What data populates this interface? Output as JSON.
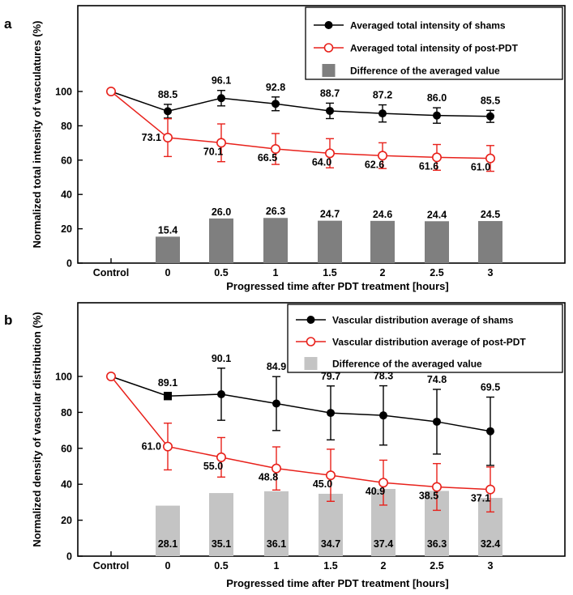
{
  "chart_data": [
    {
      "panel_label": "a",
      "type": "line",
      "xlabel": "Progressed time after PDT treatment [hours]",
      "ylabel": "Normalized total intensity of vasculatures (%)",
      "categories": [
        "Control",
        "0",
        "0.5",
        "1",
        "1.5",
        "2",
        "2.5",
        "3"
      ],
      "ylim": [
        0,
        140
      ],
      "yticks": [
        0,
        20,
        40,
        60,
        80,
        100
      ],
      "grid": false,
      "legend_position": "top-right",
      "bar_color": "#7f7f7f",
      "series": [
        {
          "name": "Averaged total intensity of shams",
          "kind": "line",
          "color": "#000000",
          "marker": "filled-circle",
          "values": [
            100,
            88.5,
            96.1,
            92.8,
            88.7,
            87.2,
            86.0,
            85.5
          ],
          "errors": [
            0,
            4,
            4.5,
            4,
            4.5,
            5,
            4.5,
            3.5
          ],
          "labels": [
            "",
            "88.5",
            "96.1",
            "92.8",
            "88.7",
            "87.2",
            "86.0",
            "85.5"
          ]
        },
        {
          "name": "Averaged total intensity of post-PDT",
          "kind": "line",
          "color": "#e8211b",
          "marker": "open-circle",
          "values": [
            100,
            73.1,
            70.1,
            66.5,
            64.0,
            62.6,
            61.6,
            61.0
          ],
          "errors": [
            0,
            11,
            11,
            9,
            8.5,
            7.5,
            7.5,
            7.5
          ],
          "labels": [
            "",
            "73.1",
            "70.1",
            "66.5",
            "64.0",
            "62.6",
            "61.6",
            "61.0"
          ]
        },
        {
          "name": "Difference of the averaged value",
          "kind": "bar",
          "values": [
            null,
            15.4,
            26.0,
            26.3,
            24.7,
            24.6,
            24.4,
            24.5
          ],
          "labels": [
            "",
            "15.4",
            "26.0",
            "26.3",
            "24.7",
            "24.6",
            "24.4",
            "24.5"
          ]
        }
      ]
    },
    {
      "panel_label": "b",
      "type": "line",
      "xlabel": "Progressed time after PDT treatment [hours]",
      "ylabel": "Normalized density of vascular distribution (%)",
      "categories": [
        "Control",
        "0",
        "0.5",
        "1",
        "1.5",
        "2",
        "2.5",
        "3"
      ],
      "ylim": [
        0,
        140
      ],
      "yticks": [
        0,
        20,
        40,
        60,
        80,
        100
      ],
      "grid": false,
      "legend_position": "top-right",
      "bar_color": "#c4c4c4",
      "series": [
        {
          "name": "Vascular distribution average of shams",
          "kind": "line",
          "color": "#000000",
          "marker": "filled-circle",
          "values": [
            100,
            89.1,
            90.1,
            84.9,
            79.7,
            78.3,
            74.8,
            69.5
          ],
          "errors": [
            0,
            2,
            14.5,
            15,
            15,
            16.5,
            18,
            19
          ],
          "labels": [
            "",
            "89.1",
            "90.1",
            "84.9",
            "79.7",
            "78.3",
            "74.8",
            "69.5"
          ]
        },
        {
          "name": "Vascular distribution average of post-PDT",
          "kind": "line",
          "color": "#e8211b",
          "marker": "open-circle",
          "values": [
            100,
            61.0,
            55.0,
            48.8,
            45.0,
            40.9,
            38.5,
            37.1
          ],
          "errors": [
            0,
            13,
            11,
            12,
            14.5,
            12.5,
            13,
            12.5
          ],
          "labels": [
            "",
            "61.0",
            "55.0",
            "48.8",
            "45.0",
            "40.9",
            "38.5",
            "37.1"
          ]
        },
        {
          "name": "Difference of the averaged value",
          "kind": "bar",
          "values": [
            null,
            28.1,
            35.1,
            36.1,
            34.7,
            37.4,
            36.3,
            32.4
          ],
          "labels": [
            "",
            "28.1",
            "35.1",
            "36.1",
            "34.7",
            "37.4",
            "36.3",
            "32.4"
          ]
        }
      ]
    }
  ]
}
